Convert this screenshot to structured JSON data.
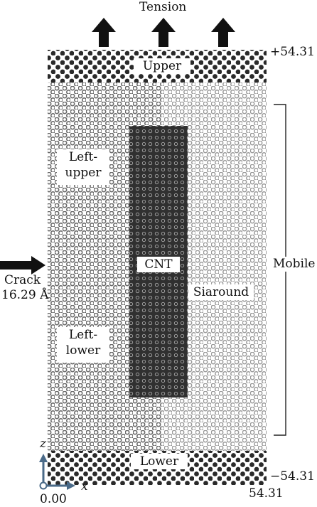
{
  "title": "Tension",
  "labels": {
    "upper": "Upper",
    "lower": "Lower",
    "left_upper": [
      "Left-",
      "upper"
    ],
    "left_lower": [
      "Left-",
      "lower"
    ],
    "cnt": "CNT",
    "siaround": "Siaround",
    "mobile": "Mobile",
    "crack_line1": "Crack",
    "crack_line2": "16.29 Å"
  },
  "coordinates": {
    "top": "+54.31",
    "bottom": "−54.31",
    "x_extent": "54.31",
    "origin": "0.00"
  },
  "axes": {
    "z": "z",
    "x": "x"
  },
  "colors": {
    "dark_atoms": "#2a2a2a",
    "silicon_atoms": "#8a8a8a",
    "cnt_region": "#2f2f2f",
    "arrow": "#111111"
  }
}
